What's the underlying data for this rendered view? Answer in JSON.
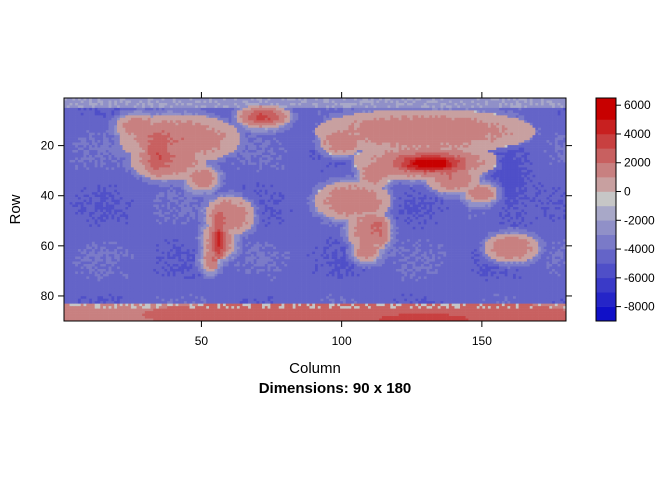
{
  "chart_data": {
    "type": "heatmap",
    "title": "",
    "subtitle": "Dimensions: 90 x 180",
    "xlabel": "Column",
    "ylabel": "Row",
    "rows": 90,
    "cols": 180,
    "xlim": [
      1,
      180
    ],
    "ylim": [
      90,
      1
    ],
    "x_ticks": [
      50,
      100,
      150
    ],
    "y_ticks": [
      20,
      40,
      60,
      80
    ],
    "colorbar": {
      "range": [
        -9000,
        6500
      ],
      "ticks": [
        6000,
        4000,
        2000,
        0,
        -2000,
        -4000,
        -6000,
        -8000
      ],
      "tick_labels": [
        "6000",
        "4000",
        "2000",
        "0",
        "-2000",
        "-4000",
        "-6000",
        "-8000"
      ],
      "levels": [
        -9000,
        -8000,
        -7000,
        -6000,
        -5000,
        -4000,
        -3000,
        -2000,
        -1000,
        0,
        1000,
        2000,
        3000,
        4000,
        5000,
        6000,
        6500
      ],
      "colors": [
        "#1010c8",
        "#2525c8",
        "#3a3ac8",
        "#4f4fc8",
        "#6464c8",
        "#7a7ac8",
        "#9090c8",
        "#a8a8c8",
        "#c6c6c6",
        "#c8a0a0",
        "#c88080",
        "#c86060",
        "#c84040",
        "#c82020",
        "#c80000",
        "#c80000"
      ]
    },
    "palette": {
      "ocean": "#4a4ad0",
      "land": "#c6c6c6",
      "high": "#c82020"
    },
    "description_regions": {
      "antarctica_rows": [
        83,
        90
      ],
      "tibet_peak_value": 6000,
      "ocean_min_value": -9000
    }
  }
}
